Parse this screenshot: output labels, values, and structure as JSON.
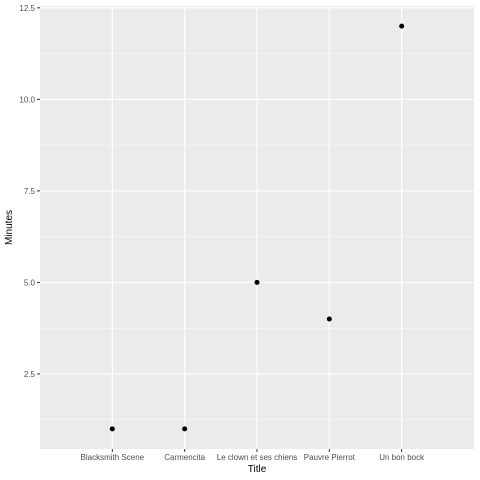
{
  "chart_data": {
    "type": "scatter",
    "categories": [
      "Blacksmith Scene",
      "Carmencita",
      "Le clown et ses chiens",
      "Pauvre Pierrot",
      "Un bon bock"
    ],
    "values": [
      1,
      1,
      5,
      4,
      12
    ],
    "xlabel": "Title",
    "ylabel": "Minutes",
    "ylim": [
      0.45,
      12.55
    ],
    "yticks": [
      2.5,
      5.0,
      7.5,
      10.0,
      12.5
    ],
    "ytick_labels": [
      "2.5",
      "5.0",
      "7.5",
      "10.0",
      "12.5"
    ],
    "grid": true,
    "colors": {
      "panel_background": "#ebebeb",
      "grid_major": "#ffffff",
      "point": "#000000",
      "tick_text": "#4d4d4d",
      "tick_mark": "#333333"
    }
  }
}
